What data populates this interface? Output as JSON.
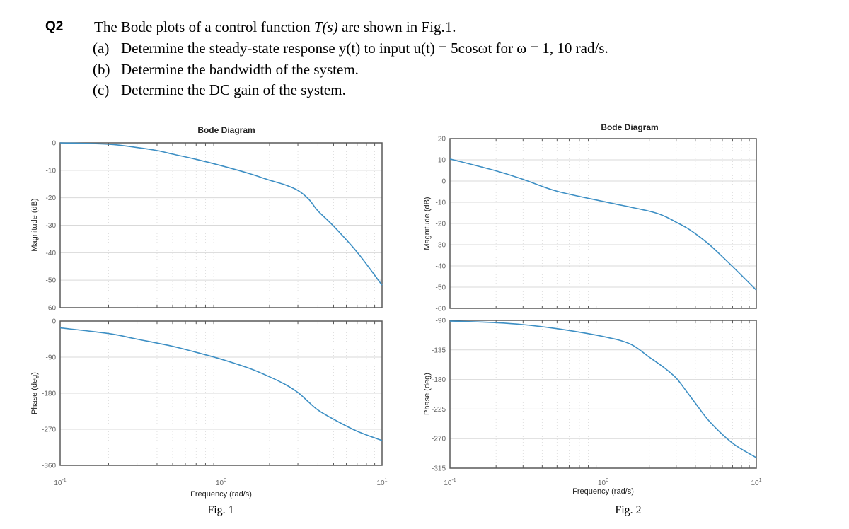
{
  "question": {
    "number": "Q2",
    "intro_before": "The Bode plots of a control function ",
    "intro_math": "T(s)",
    "intro_after": " are shown in Fig.1.",
    "items": [
      {
        "label": "(a)",
        "text": "Determine the steady-state response y(t) to input u(t) = 5cosωt for ω = 1,  10 rad/s."
      },
      {
        "label": "(b)",
        "text": "Determine the bandwidth of the system."
      },
      {
        "label": "(c)",
        "text": "Determine the DC gain of the system."
      }
    ]
  },
  "colors": {
    "curve": "#3d8fc4",
    "grid": "#d9d9d9",
    "axis": "#595959",
    "tick_text": "#666666"
  },
  "chart_data": [
    {
      "type": "line",
      "title": "Bode Diagram",
      "caption": "Fig. 1",
      "xlabel": "Frequency  (rad/s)",
      "xscale": "log",
      "xlim": [
        0.1,
        10
      ],
      "xticks": [
        {
          "base": "10",
          "exp": "-1"
        },
        {
          "base": "10",
          "exp": "0"
        },
        {
          "base": "10",
          "exp": "1"
        }
      ],
      "grid": true,
      "panels": [
        {
          "ylabel": "Magnitude (dB)",
          "ylim": [
            -60,
            0
          ],
          "yticks": [
            0,
            -10,
            -20,
            -30,
            -40,
            -50,
            -60
          ],
          "x": [
            0.1,
            0.2,
            0.3,
            0.4,
            0.5,
            0.7,
            1,
            1.5,
            2,
            2.5,
            3,
            3.5,
            4,
            5,
            7,
            10
          ],
          "y": [
            0,
            -0.5,
            -1.7,
            -2.8,
            -4.1,
            -6,
            -8.3,
            -11.2,
            -13.6,
            -15.3,
            -17.3,
            -20.5,
            -24.8,
            -30.3,
            -39.8,
            -51.8
          ]
        },
        {
          "ylabel": "Phase (deg)",
          "ylim": [
            -360,
            0
          ],
          "yticks": [
            0,
            -90,
            -180,
            -270,
            -360
          ],
          "x": [
            0.1,
            0.2,
            0.3,
            0.5,
            0.7,
            1,
            1.5,
            2,
            2.5,
            3,
            3.5,
            4,
            5,
            7,
            10
          ],
          "y": [
            -17,
            -31,
            -45,
            -63,
            -78,
            -95,
            -118,
            -139,
            -158,
            -178,
            -202,
            -222,
            -245,
            -275,
            -298
          ]
        }
      ]
    },
    {
      "type": "line",
      "title": "Bode Diagram",
      "caption": "Fig. 2",
      "xlabel": "Frequency  (rad/s)",
      "xscale": "log",
      "xlim": [
        0.1,
        10
      ],
      "xticks": [
        {
          "base": "10",
          "exp": "-1"
        },
        {
          "base": "10",
          "exp": "0"
        },
        {
          "base": "10",
          "exp": "1"
        }
      ],
      "grid": true,
      "panels": [
        {
          "ylabel": "Magnitude (dB)",
          "ylim": [
            -60,
            20
          ],
          "yticks": [
            20,
            10,
            0,
            -10,
            -20,
            -30,
            -40,
            -50,
            -60
          ],
          "x": [
            0.1,
            0.2,
            0.3,
            0.5,
            1,
            2,
            2.5,
            3,
            3.5,
            4,
            5,
            7,
            10
          ],
          "y": [
            10.4,
            4.8,
            0.8,
            -4.8,
            -9.6,
            -14.2,
            -16.5,
            -19.4,
            -22,
            -24.8,
            -30.3,
            -40.3,
            -51.4
          ]
        },
        {
          "ylabel": "Phase (deg)",
          "ylim": [
            -315,
            -90
          ],
          "yticks": [
            -90,
            -135,
            -180,
            -225,
            -270,
            -315
          ],
          "x": [
            0.1,
            0.2,
            0.3,
            0.5,
            1,
            1.5,
            2,
            2.5,
            3,
            3.5,
            4,
            5,
            7,
            10
          ],
          "y": [
            -91,
            -93.6,
            -96.5,
            -102.6,
            -114.5,
            -126,
            -146,
            -162,
            -178,
            -198,
            -216,
            -245,
            -277,
            -299
          ]
        }
      ]
    }
  ]
}
